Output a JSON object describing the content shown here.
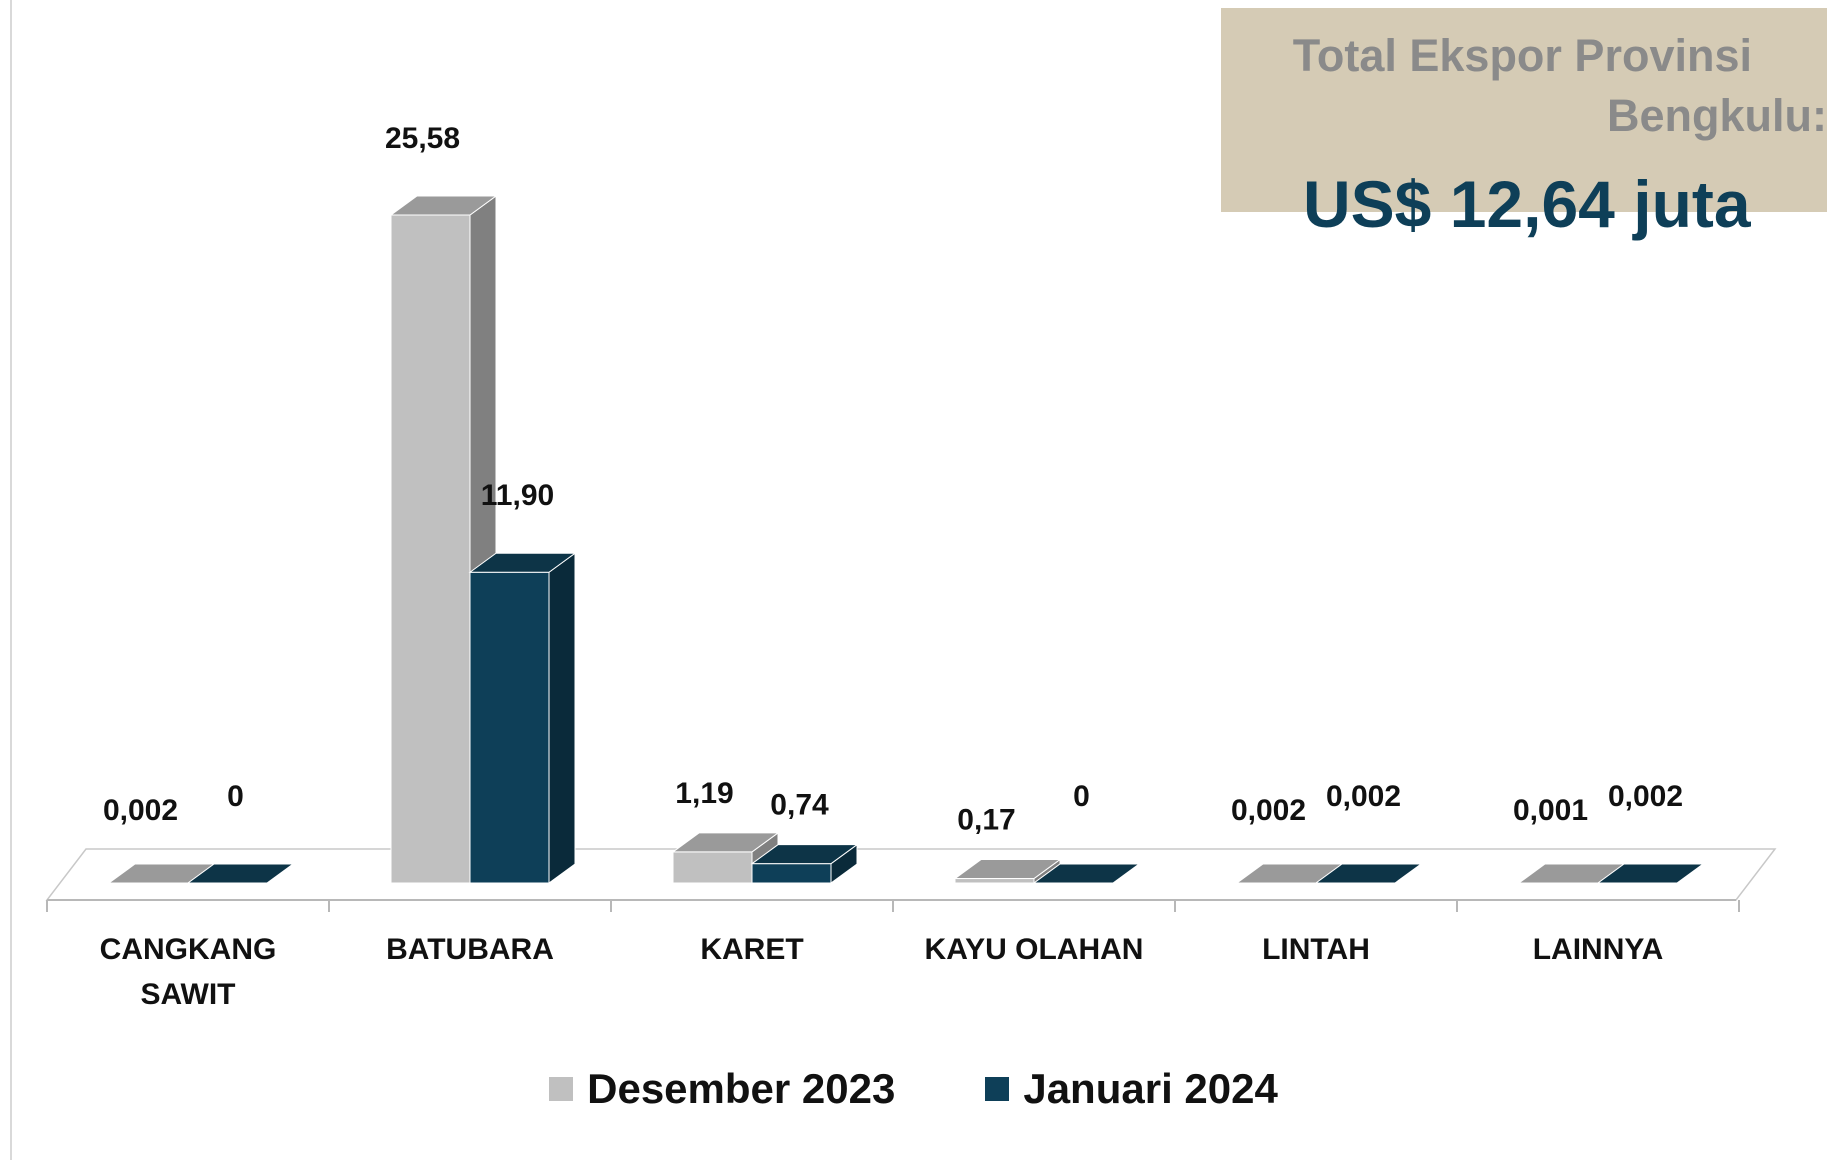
{
  "total_box": {
    "line1": "Total Ekspor Provinsi",
    "line2": "Bengkulu:",
    "value": "US$ 12,64 juta"
  },
  "colors": {
    "series1_front": "#c0c0c0",
    "series1_top": "#9a9a9a",
    "series1_side": "#808080",
    "series2_front": "#0e3f58",
    "series2_top": "#0d3447",
    "series2_side": "#0a2a3a",
    "box_background": "#d5cbb5",
    "accent_text": "#0e3f58"
  },
  "chart_data": {
    "type": "bar",
    "categories": [
      "CANGKANG\nSAWIT",
      "BATUBARA",
      "KARET",
      "KAYU OLAHAN",
      "LINTAH",
      "LAINNYA"
    ],
    "series": [
      {
        "name": "Desember 2023",
        "values": [
          0.002,
          25.58,
          1.19,
          0.17,
          0.002,
          0.001
        ],
        "labels": [
          "0,002",
          "25,58",
          "1,19",
          "0,17",
          "0,002",
          "0,001"
        ]
      },
      {
        "name": "Januari 2024",
        "values": [
          0,
          11.9,
          0.74,
          0,
          0.002,
          0.002
        ],
        "labels": [
          "0",
          "11,90",
          "0,74",
          "0",
          "0,002",
          "0,002"
        ]
      }
    ],
    "title": "",
    "xlabel": "",
    "ylabel": "",
    "ylim": [
      0,
      25.58
    ],
    "grid": false,
    "legend_position": "bottom"
  }
}
